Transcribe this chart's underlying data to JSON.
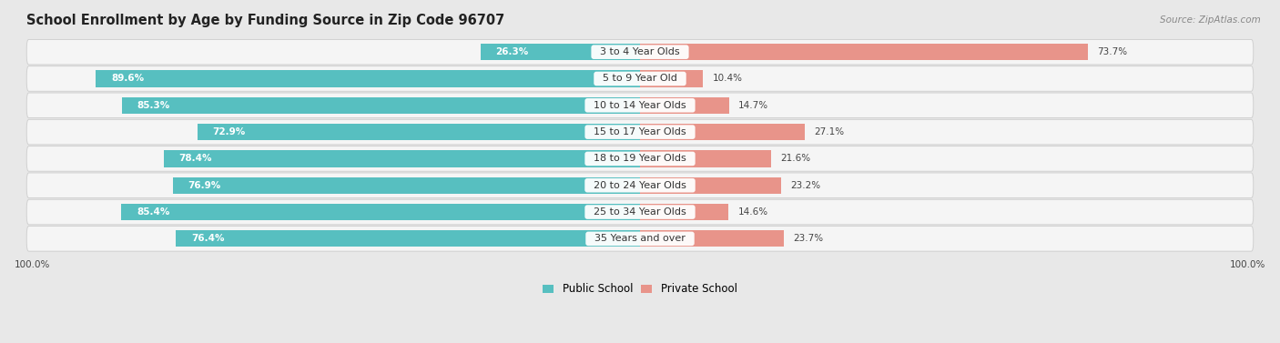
{
  "title": "School Enrollment by Age by Funding Source in Zip Code 96707",
  "source": "Source: ZipAtlas.com",
  "categories": [
    "3 to 4 Year Olds",
    "5 to 9 Year Old",
    "10 to 14 Year Olds",
    "15 to 17 Year Olds",
    "18 to 19 Year Olds",
    "20 to 24 Year Olds",
    "25 to 34 Year Olds",
    "35 Years and over"
  ],
  "public_values": [
    26.3,
    89.6,
    85.3,
    72.9,
    78.4,
    76.9,
    85.4,
    76.4
  ],
  "private_values": [
    73.7,
    10.4,
    14.7,
    27.1,
    21.6,
    23.2,
    14.6,
    23.7
  ],
  "public_color": "#57bfc0",
  "private_color": "#e8948a",
  "bg_color": "#e8e8e8",
  "row_bg_color": "#f5f5f5",
  "title_fontsize": 10.5,
  "bar_label_fontsize": 8.0,
  "value_fontsize": 7.5,
  "legend_fontsize": 8.5,
  "source_fontsize": 7.5
}
